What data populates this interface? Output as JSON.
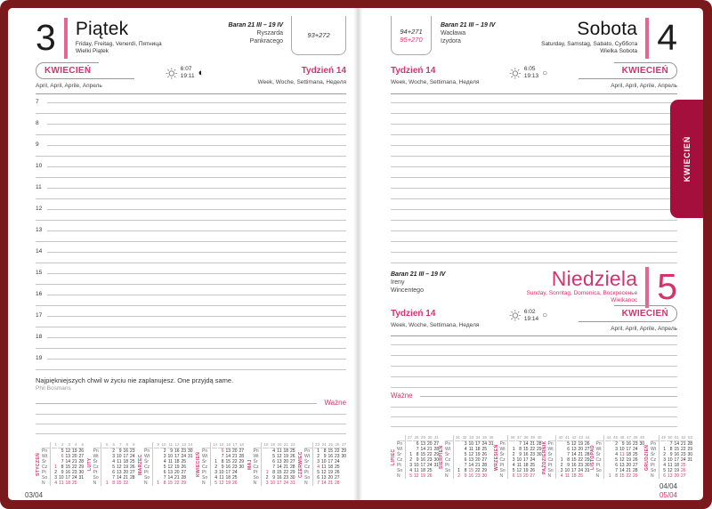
{
  "colors": {
    "accent": "#d6336c",
    "day_bar": "#e1688e",
    "tab": "#a50f3d",
    "frame": "#7a191c"
  },
  "left_page": {
    "day_number": "3",
    "day_name": "Piątek",
    "day_langs": "Friday, Freitag, Venerdì, Пятница",
    "day_note": "Wielki Piątek",
    "zodiac": "Baran 21 III – 19 IV",
    "namedays": [
      "Ryszarda",
      "Pankracego"
    ],
    "day_counter": "93+272",
    "month_label": "KWIECIEŃ",
    "month_langs": "April, April, Aprile, Апрель",
    "week_label": "Tydzień 14",
    "week_langs": "Week, Woche, Settimana, Неделя",
    "sunrise": "6:07",
    "sunset": "19:11",
    "moon_icon": "◐",
    "hours": [
      "7",
      "8",
      "9",
      "10",
      "11",
      "12",
      "13",
      "14",
      "15",
      "16",
      "17",
      "18",
      "19"
    ],
    "quote": "Najpiękniejszych chwil w życiu nie zaplanujesz. One przyjdą same.",
    "quote_author": "Phil Bosmans",
    "important_label": "Ważne",
    "page_number": "03/04"
  },
  "right_page": {
    "saturday": {
      "day_number": "4",
      "day_name": "Sobota",
      "day_langs": "Saturday, Samstag, Sabato, Суббота",
      "day_note": "Wielka Sobota",
      "zodiac": "Baran 21 III – 19 IV",
      "namedays": [
        "Wacława",
        "Izydora"
      ],
      "day_counter_1": "94+271",
      "day_counter_2": "95+270",
      "month_label": "KWIECIEŃ",
      "month_langs": "April, April, Aprile, Апрель",
      "week_label": "Tydzień 14",
      "week_langs": "Week, Woche, Settimana, Неделя",
      "sunrise": "6:05",
      "sunset": "19:13",
      "moon_icon": "○"
    },
    "sunday": {
      "day_number": "5",
      "day_name": "Niedziela",
      "day_langs": "Sunday, Sonntag, Domenica, Воскресенье",
      "day_note": "Wielkanoc",
      "zodiac": "Baran 21 III – 19 IV",
      "namedays": [
        "Ireny",
        "Wincentego"
      ],
      "month_label": "KWIECIEŃ",
      "month_langs": "April, April, Aprile, Апрель",
      "week_label": "Tydzień 14",
      "week_langs": "Week, Woche, Settimana, Неделя",
      "sunrise": "6:02",
      "sunset": "19:14",
      "moon_icon": "○"
    },
    "important_label": "Ważne",
    "page_numbers": [
      "04/04",
      "05/04"
    ]
  },
  "side_tab": {
    "label": "KWIECIEŃ"
  },
  "mini_calendar": {
    "day_labels": [
      "Pn",
      "Wt",
      "Śr",
      "Cz",
      "Pt",
      "So",
      "N"
    ],
    "left_months": [
      {
        "name": "STYCZEŃ",
        "weeks": [
          "1",
          "2",
          "3",
          "4",
          "5"
        ],
        "holidays": [
          1,
          6
        ],
        "rows": [
          [
            "",
            "5",
            "12",
            "19",
            "26"
          ],
          [
            "",
            "6",
            "13",
            "20",
            "27"
          ],
          [
            "",
            "7",
            "14",
            "21",
            "28"
          ],
          [
            "1",
            "8",
            "15",
            "22",
            "29"
          ],
          [
            "2",
            "9",
            "16",
            "23",
            "30"
          ],
          [
            "3",
            "10",
            "17",
            "24",
            "31"
          ],
          [
            "4",
            "11",
            "18",
            "25",
            ""
          ]
        ]
      },
      {
        "name": "LUTY",
        "weeks": [
          "5",
          "6",
          "7",
          "8",
          "9"
        ],
        "holidays": [],
        "rows": [
          [
            "",
            "2",
            "9",
            "16",
            "23"
          ],
          [
            "",
            "3",
            "10",
            "17",
            "24"
          ],
          [
            "",
            "4",
            "11",
            "18",
            "25"
          ],
          [
            "",
            "5",
            "12",
            "19",
            "26"
          ],
          [
            "",
            "6",
            "13",
            "20",
            "27"
          ],
          [
            "",
            "7",
            "14",
            "21",
            "28"
          ],
          [
            "1",
            "8",
            "15",
            "22",
            ""
          ]
        ]
      },
      {
        "name": "MARZEC",
        "weeks": [
          "9",
          "10",
          "11",
          "12",
          "13",
          "14"
        ],
        "holidays": [],
        "rows": [
          [
            "",
            "2",
            "9",
            "16",
            "23",
            "30"
          ],
          [
            "",
            "3",
            "10",
            "17",
            "24",
            "31"
          ],
          [
            "",
            "4",
            "11",
            "18",
            "25",
            ""
          ],
          [
            "",
            "5",
            "12",
            "19",
            "26",
            ""
          ],
          [
            "",
            "6",
            "13",
            "20",
            "27",
            ""
          ],
          [
            "",
            "7",
            "14",
            "21",
            "28",
            ""
          ],
          [
            "1",
            "8",
            "15",
            "22",
            "29",
            ""
          ]
        ]
      },
      {
        "name": "KWIECIEŃ",
        "weeks": [
          "14",
          "15",
          "16",
          "17",
          "18"
        ],
        "holidays": [
          6
        ],
        "rows": [
          [
            "",
            "6",
            "13",
            "20",
            "27"
          ],
          [
            "",
            "7",
            "14",
            "21",
            "28"
          ],
          [
            "1",
            "8",
            "15",
            "22",
            "29"
          ],
          [
            "2",
            "9",
            "16",
            "23",
            "30"
          ],
          [
            "3",
            "10",
            "17",
            "24",
            ""
          ],
          [
            "4",
            "11",
            "18",
            "25",
            ""
          ],
          [
            "5",
            "12",
            "19",
            "26",
            ""
          ]
        ]
      },
      {
        "name": "MAJ",
        "weeks": [
          "18",
          "19",
          "20",
          "21",
          "22"
        ],
        "holidays": [
          1
        ],
        "rows": [
          [
            "",
            "4",
            "11",
            "18",
            "25"
          ],
          [
            "",
            "5",
            "12",
            "19",
            "26"
          ],
          [
            "",
            "6",
            "13",
            "20",
            "27"
          ],
          [
            "",
            "7",
            "14",
            "21",
            "28"
          ],
          [
            "1",
            "8",
            "15",
            "22",
            "29"
          ],
          [
            "2",
            "9",
            "16",
            "23",
            "30"
          ],
          [
            "3",
            "10",
            "17",
            "24",
            "31"
          ]
        ]
      },
      {
        "name": "CZERWIEC",
        "weeks": [
          "23",
          "24",
          "25",
          "26",
          "27"
        ],
        "holidays": [
          4
        ],
        "rows": [
          [
            "1",
            "8",
            "15",
            "22",
            "29"
          ],
          [
            "2",
            "9",
            "16",
            "23",
            "30"
          ],
          [
            "3",
            "10",
            "17",
            "24",
            ""
          ],
          [
            "4",
            "11",
            "18",
            "25",
            ""
          ],
          [
            "5",
            "12",
            "19",
            "26",
            ""
          ],
          [
            "6",
            "13",
            "20",
            "27",
            ""
          ],
          [
            "7",
            "14",
            "21",
            "28",
            ""
          ]
        ]
      }
    ],
    "right_months": [
      {
        "name": "LIPIEC",
        "weeks": [
          "27",
          "28",
          "29",
          "30",
          "31"
        ],
        "holidays": [],
        "rows": [
          [
            "",
            "6",
            "13",
            "20",
            "27"
          ],
          [
            "",
            "7",
            "14",
            "21",
            "28"
          ],
          [
            "1",
            "8",
            "15",
            "22",
            "29"
          ],
          [
            "2",
            "9",
            "16",
            "23",
            "30"
          ],
          [
            "3",
            "10",
            "17",
            "24",
            "31"
          ],
          [
            "4",
            "11",
            "18",
            "25",
            ""
          ],
          [
            "5",
            "12",
            "19",
            "26",
            ""
          ]
        ]
      },
      {
        "name": "SIERPIEŃ",
        "weeks": [
          "31",
          "32",
          "33",
          "34",
          "35",
          "36"
        ],
        "holidays": [
          15
        ],
        "rows": [
          [
            "",
            "3",
            "10",
            "17",
            "24",
            "31"
          ],
          [
            "",
            "4",
            "11",
            "18",
            "25",
            ""
          ],
          [
            "",
            "5",
            "12",
            "19",
            "26",
            ""
          ],
          [
            "",
            "6",
            "13",
            "20",
            "27",
            ""
          ],
          [
            "",
            "7",
            "14",
            "21",
            "28",
            ""
          ],
          [
            "1",
            "8",
            "15",
            "22",
            "29",
            ""
          ],
          [
            "2",
            "9",
            "16",
            "23",
            "30",
            ""
          ]
        ]
      },
      {
        "name": "WRZESIEŃ",
        "weeks": [
          "36",
          "37",
          "38",
          "39",
          "40"
        ],
        "holidays": [],
        "rows": [
          [
            "",
            "7",
            "14",
            "21",
            "28"
          ],
          [
            "1",
            "8",
            "15",
            "22",
            "29"
          ],
          [
            "2",
            "9",
            "16",
            "23",
            "30"
          ],
          [
            "3",
            "10",
            "17",
            "24",
            ""
          ],
          [
            "4",
            "11",
            "18",
            "25",
            ""
          ],
          [
            "5",
            "12",
            "19",
            "26",
            ""
          ],
          [
            "6",
            "13",
            "20",
            "27",
            ""
          ]
        ]
      },
      {
        "name": "PAŹDZIERNIK",
        "weeks": [
          "40",
          "41",
          "42",
          "43",
          "44"
        ],
        "holidays": [],
        "rows": [
          [
            "",
            "5",
            "12",
            "19",
            "26"
          ],
          [
            "",
            "6",
            "13",
            "20",
            "27"
          ],
          [
            "",
            "7",
            "14",
            "21",
            "28"
          ],
          [
            "1",
            "8",
            "15",
            "22",
            "29"
          ],
          [
            "2",
            "9",
            "16",
            "23",
            "30"
          ],
          [
            "3",
            "10",
            "17",
            "24",
            "31"
          ],
          [
            "4",
            "11",
            "18",
            "25",
            ""
          ]
        ]
      },
      {
        "name": "LISTOPAD",
        "weeks": [
          "44",
          "45",
          "46",
          "47",
          "48",
          "49"
        ],
        "holidays": [
          11
        ],
        "rows": [
          [
            "",
            "2",
            "9",
            "16",
            "23",
            "30"
          ],
          [
            "",
            "3",
            "10",
            "17",
            "24",
            ""
          ],
          [
            "",
            "4",
            "11",
            "18",
            "25",
            ""
          ],
          [
            "",
            "5",
            "12",
            "19",
            "26",
            ""
          ],
          [
            "",
            "6",
            "13",
            "20",
            "27",
            ""
          ],
          [
            "",
            "7",
            "14",
            "21",
            "28",
            ""
          ],
          [
            "1",
            "8",
            "15",
            "22",
            "29",
            ""
          ]
        ]
      },
      {
        "name": "GRUDZIEŃ",
        "weeks": [
          "49",
          "50",
          "51",
          "52",
          "53"
        ],
        "holidays": [
          25,
          26
        ],
        "rows": [
          [
            "",
            "7",
            "14",
            "21",
            "28"
          ],
          [
            "1",
            "8",
            "15",
            "22",
            "29"
          ],
          [
            "2",
            "9",
            "16",
            "23",
            "30"
          ],
          [
            "3",
            "10",
            "17",
            "24",
            "31"
          ],
          [
            "4",
            "11",
            "18",
            "25",
            ""
          ],
          [
            "5",
            "12",
            "19",
            "26",
            ""
          ],
          [
            "6",
            "13",
            "20",
            "27",
            ""
          ]
        ]
      }
    ]
  }
}
